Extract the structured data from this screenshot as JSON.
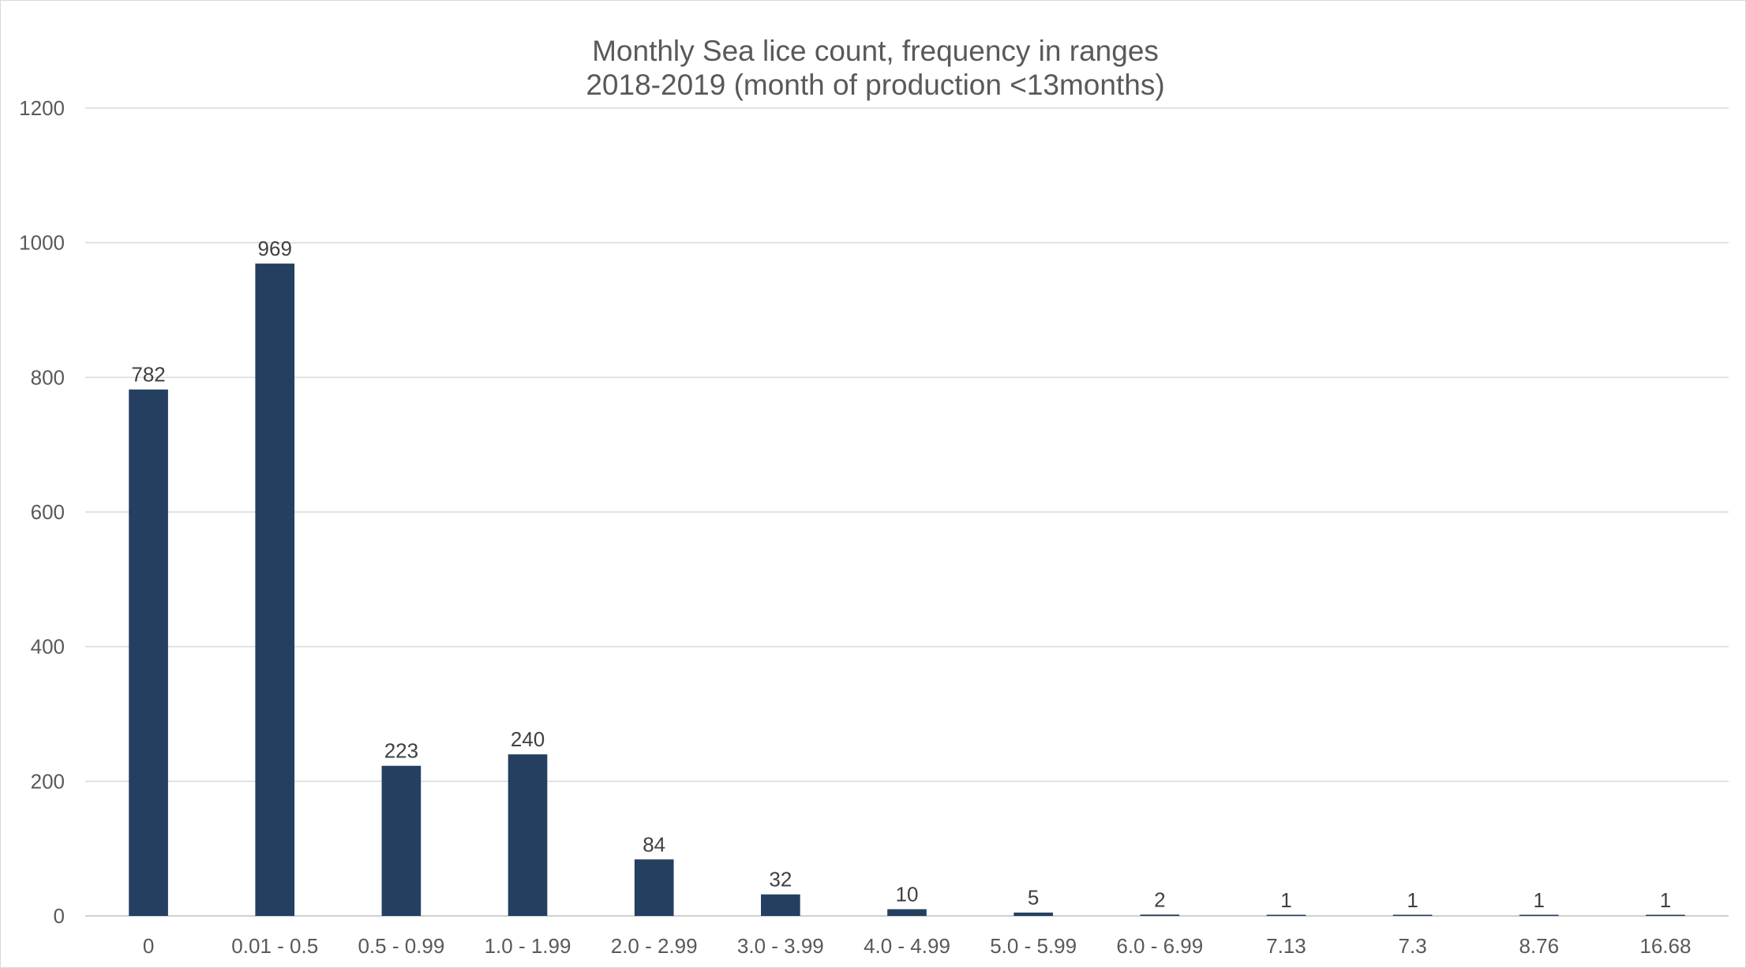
{
  "chart_data": {
    "type": "bar",
    "title_line1": "Monthly Sea lice count, frequency in ranges",
    "title_line2": "2018-2019 (month of production <13months)",
    "xlabel": "",
    "ylabel": "",
    "categories": [
      "0",
      "0.01 - 0.5",
      "0.5 - 0.99",
      "1.0 - 1.99",
      "2.0 - 2.99",
      "3.0 - 3.99",
      "4.0 - 4.99",
      "5.0 - 5.99",
      "6.0 - 6.99",
      "7.13",
      "7.3",
      "8.76",
      "16.68"
    ],
    "values": [
      782,
      969,
      223,
      240,
      84,
      32,
      10,
      5,
      2,
      1,
      1,
      1,
      1
    ],
    "data_labels": [
      "782",
      "969",
      "223",
      "240",
      "84",
      "32",
      "10",
      "5",
      "2",
      "1",
      "1",
      "1",
      "1"
    ],
    "ylim": [
      0,
      1200
    ],
    "yticks": [
      0,
      200,
      400,
      600,
      800,
      1000,
      1200
    ],
    "ytick_labels": [
      "0",
      "200",
      "400",
      "600",
      "800",
      "1000",
      "1200"
    ],
    "grid": true,
    "legend": "none",
    "colors": {
      "bar": "#243f60",
      "gridline": "#d9d9d9",
      "axis_text": "#595959",
      "title_text": "#595959",
      "data_label_text": "#404040"
    }
  }
}
